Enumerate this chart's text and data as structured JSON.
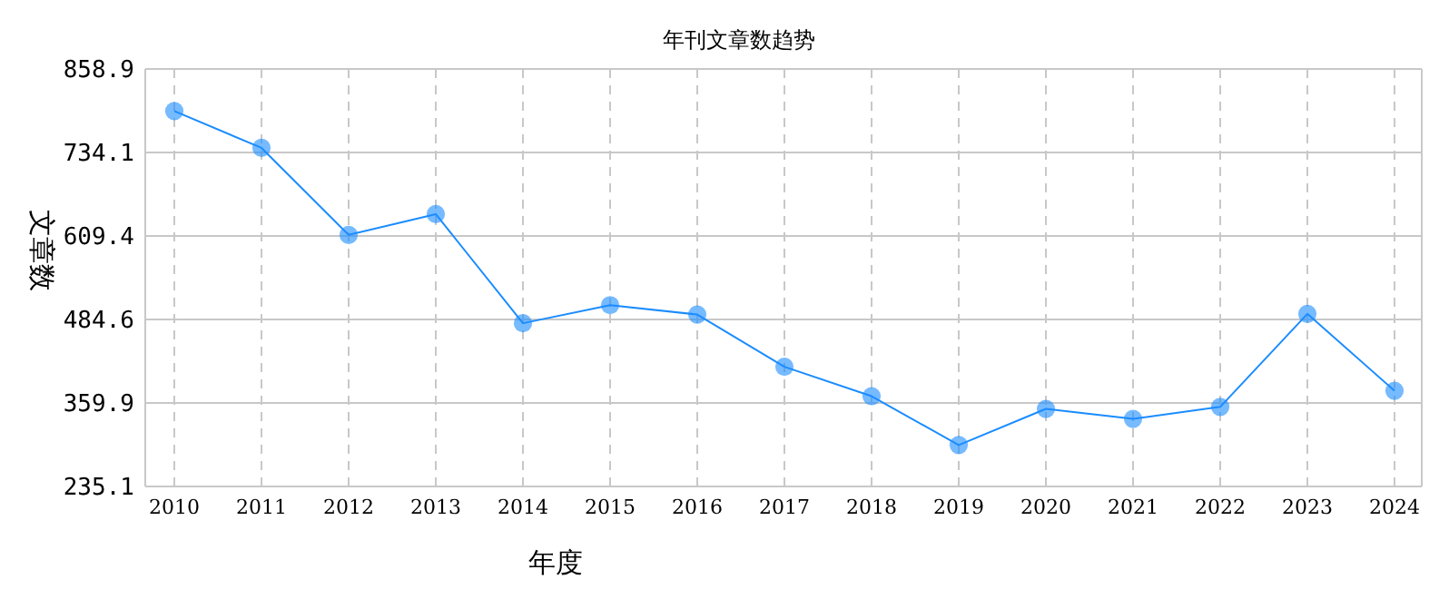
{
  "chart_data": {
    "type": "line",
    "title": "年刊文章数趋势",
    "xlabel": "年度",
    "ylabel": "文章数",
    "categories": [
      "2010",
      "2011",
      "2012",
      "2013",
      "2014",
      "2015",
      "2016",
      "2017",
      "2018",
      "2019",
      "2020",
      "2021",
      "2022",
      "2023",
      "2024"
    ],
    "series": [
      {
        "color": "#1a8cff",
        "values": [
          796,
          741,
          611,
          642,
          479,
          506,
          492,
          414,
          370,
          297,
          351,
          336,
          354,
          493,
          378
        ]
      }
    ],
    "ylim": [
      235.1,
      858.9
    ],
    "yticks": [
      {
        "value": 235.1,
        "label": "235.1"
      },
      {
        "value": 359.9,
        "label": "359.9"
      },
      {
        "value": 484.6,
        "label": "484.6"
      },
      {
        "value": 609.4,
        "label": "609.4"
      },
      {
        "value": 734.1,
        "label": "734.1"
      },
      {
        "value": 858.9,
        "label": "858.9"
      }
    ],
    "grid": true,
    "marker": "circle",
    "line_style": "solid"
  }
}
